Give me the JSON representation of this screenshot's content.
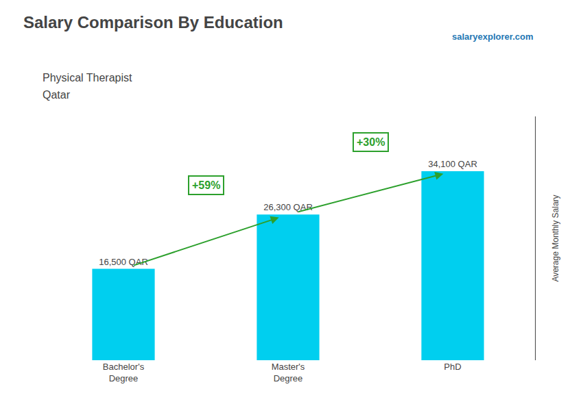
{
  "chart_data": {
    "type": "bar",
    "title": "Salary Comparison By Education",
    "subtitle": [
      "Physical Therapist",
      "Qatar"
    ],
    "source": "salaryexplorer.com",
    "ylabel": "Average Monthly Salary",
    "categories": [
      "Bachelor's\nDegree",
      "Master's\nDegree",
      "PhD"
    ],
    "values": [
      16500,
      26300,
      34100
    ],
    "value_labels": [
      "16,500 QAR",
      "26,300 QAR",
      "34,100 QAR"
    ],
    "data_labels": true,
    "color": "#00CFEF",
    "annotations": [
      "+59%",
      "+30%"
    ],
    "ylim": [
      0,
      44000
    ],
    "tick_labels": "x",
    "grid": false
  }
}
